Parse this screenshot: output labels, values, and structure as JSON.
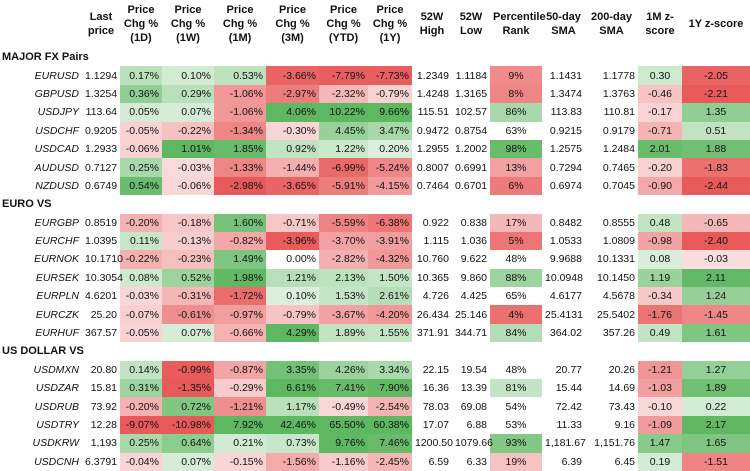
{
  "headers": [
    "",
    "Last price",
    "Price Chg % (1D)",
    "Price Chg % (1W)",
    "Price Chg % (1M)",
    "Price Chg % (3M)",
    "Price Chg % (YTD)",
    "Price Chg % (1Y)",
    "52W High",
    "52W Low",
    "Percentile Rank",
    "50-day SMA",
    "200-day SMA",
    "1M z-score",
    "1Y z-score"
  ],
  "sections": [
    {
      "title": "MAJOR FX Pairs",
      "rows": [
        {
          "name": "EURUSD",
          "cells": [
            "1.1294",
            "0.17%",
            "0.10%",
            "0.53%",
            "-3.66%",
            "-7.79%",
            "-7.73%",
            "1.2349",
            "1.1184",
            "9%",
            "1.1431",
            "1.1778",
            "0.30",
            "-2.05"
          ]
        },
        {
          "name": "GBPUSD",
          "cells": [
            "1.3254",
            "0.36%",
            "0.29%",
            "-1.06%",
            "-2.97%",
            "-2.32%",
            "-0.79%",
            "1.4248",
            "1.3165",
            "8%",
            "1.3474",
            "1.3763",
            "-0.46",
            "-2.21"
          ]
        },
        {
          "name": "USDJPY",
          "cells": [
            "113.64",
            "0.05%",
            "0.07%",
            "-1.06%",
            "4.06%",
            "10.22%",
            "9.66%",
            "115.51",
            "102.57",
            "86%",
            "113.83",
            "110.81",
            "-0.17",
            "1.35"
          ]
        },
        {
          "name": "USDCHF",
          "cells": [
            "0.9205",
            "-0.05%",
            "-0.22%",
            "-1.34%",
            "-0.30%",
            "4.45%",
            "3.47%",
            "0.9472",
            "0.8754",
            "63%",
            "0.9215",
            "0.9179",
            "-0.71",
            "0.51"
          ]
        },
        {
          "name": "USDCAD",
          "cells": [
            "1.2933",
            "-0.06%",
            "1.01%",
            "1.85%",
            "0.92%",
            "1.22%",
            "0.20%",
            "1.2955",
            "1.2002",
            "98%",
            "1.2575",
            "1.2484",
            "2.01",
            "1.88"
          ]
        },
        {
          "name": "AUDUSD",
          "cells": [
            "0.7127",
            "0.25%",
            "-0.03%",
            "-1.33%",
            "-1.44%",
            "-6.99%",
            "-5.24%",
            "0.8007",
            "0.6991",
            "13%",
            "0.7294",
            "0.7465",
            "-0.20",
            "-1.83"
          ]
        },
        {
          "name": "NZDUSD",
          "cells": [
            "0.6749",
            "0.54%",
            "-0.06%",
            "-2.98%",
            "-3.65%",
            "-5.91%",
            "-4.15%",
            "0.7464",
            "0.6701",
            "6%",
            "0.6974",
            "0.7045",
            "-0.90",
            "-2.44"
          ]
        }
      ]
    },
    {
      "title": "EURO VS",
      "rows": [
        {
          "name": "EURGBP",
          "cells": [
            "0.8519",
            "-0.20%",
            "-0.18%",
            "1.60%",
            "-0.71%",
            "-5.59%",
            "-6.38%",
            "0.922",
            "0.838",
            "17%",
            "0.8482",
            "0.8555",
            "0.48",
            "-0.65"
          ]
        },
        {
          "name": "EURCHF",
          "cells": [
            "1.0395",
            "0.11%",
            "-0.13%",
            "-0.82%",
            "-3.96%",
            "-3.70%",
            "-3.91%",
            "1.115",
            "1.036",
            "5%",
            "1.0533",
            "1.0809",
            "-0.98",
            "-2.40"
          ]
        },
        {
          "name": "EURNOK",
          "cells": [
            "10.1710",
            "-0.22%",
            "-0.23%",
            "1.49%",
            "0.00%",
            "-2.82%",
            "-4.32%",
            "10.760",
            "9.622",
            "48%",
            "9.9688",
            "10.1331",
            "0.08",
            "-0.03"
          ]
        },
        {
          "name": "EURSEK",
          "cells": [
            "10.3054",
            "0.08%",
            "0.52%",
            "1.98%",
            "1.21%",
            "2.13%",
            "1.50%",
            "10.365",
            "9.860",
            "88%",
            "10.0948",
            "10.1450",
            "1.19",
            "2.11"
          ]
        },
        {
          "name": "EURPLN",
          "cells": [
            "4.6201",
            "-0.03%",
            "-0.31%",
            "-1.72%",
            "0.10%",
            "1.53%",
            "2.61%",
            "4.726",
            "4.425",
            "65%",
            "4.6177",
            "4.5678",
            "-0.34",
            "1.24"
          ]
        },
        {
          "name": "EURCZK",
          "cells": [
            "25.20",
            "-0.07%",
            "-0.61%",
            "-0.97%",
            "-0.79%",
            "-3.67%",
            "-4.20%",
            "26.434",
            "25.146",
            "4%",
            "25.4131",
            "25.5402",
            "-1.76",
            "-1.45"
          ]
        },
        {
          "name": "EURHUF",
          "cells": [
            "367.57",
            "-0.05%",
            "0.07%",
            "-0.66%",
            "4.29%",
            "1.89%",
            "1.55%",
            "371.91",
            "344.71",
            "84%",
            "364.02",
            "357.26",
            "0.49",
            "1.61"
          ]
        }
      ]
    },
    {
      "title": "US DOLLAR VS",
      "rows": [
        {
          "name": "USDMXN",
          "cells": [
            "20.80",
            "0.14%",
            "-0.99%",
            "-0.87%",
            "3.35%",
            "4.26%",
            "3.34%",
            "22.15",
            "19.54",
            "48%",
            "20.77",
            "20.26",
            "-1.21",
            "1.27"
          ]
        },
        {
          "name": "USDZAR",
          "cells": [
            "15.81",
            "0.31%",
            "-1.35%",
            "-0.29%",
            "6.61%",
            "7.41%",
            "7.90%",
            "16.36",
            "13.39",
            "81%",
            "15.44",
            "14.69",
            "-1.03",
            "1.89"
          ]
        },
        {
          "name": "USDRUB",
          "cells": [
            "73.92",
            "-0.20%",
            "0.72%",
            "-1.21%",
            "1.17%",
            "-0.49%",
            "-2.54%",
            "78.03",
            "69.08",
            "54%",
            "72.42",
            "73.43",
            "-0.10",
            "0.22"
          ]
        },
        {
          "name": "USDTRY",
          "cells": [
            "12.28",
            "-9.07%",
            "-10.98%",
            "7.92%",
            "42.46%",
            "65.50%",
            "60.38%",
            "17.07",
            "6.88",
            "53%",
            "11.33",
            "9.16",
            "-1.09",
            "2.17"
          ]
        },
        {
          "name": "USDKRW",
          "cells": [
            "1,193",
            "0.25%",
            "0.64%",
            "0.21%",
            "0.73%",
            "9.76%",
            "7.46%",
            "1200.50",
            "1079.66",
            "93%",
            "1,181.67",
            "1,151.76",
            "1.47",
            "1.65"
          ]
        },
        {
          "name": "USDCNH",
          "cells": [
            "6.3791",
            "-0.04%",
            "0.07%",
            "-0.15%",
            "-1.56%",
            "-1.16%",
            "-2.45%",
            "6.59",
            "6.33",
            "19%",
            "6.39",
            "6.45",
            "0.19",
            "-1.51"
          ]
        }
      ]
    }
  ],
  "colors": {
    "positive": "#5cb85c",
    "negative": "#e35a5a",
    "neutral": "#ffffff"
  },
  "shading": {
    "EURUSD": {
      "3": "r2",
      "4": "r2",
      "5": "r2",
      "6": "r2",
      "9": "r2",
      "12": "",
      "13": "r2"
    },
    "note": "per-cell color levels, keyed by column index"
  }
}
